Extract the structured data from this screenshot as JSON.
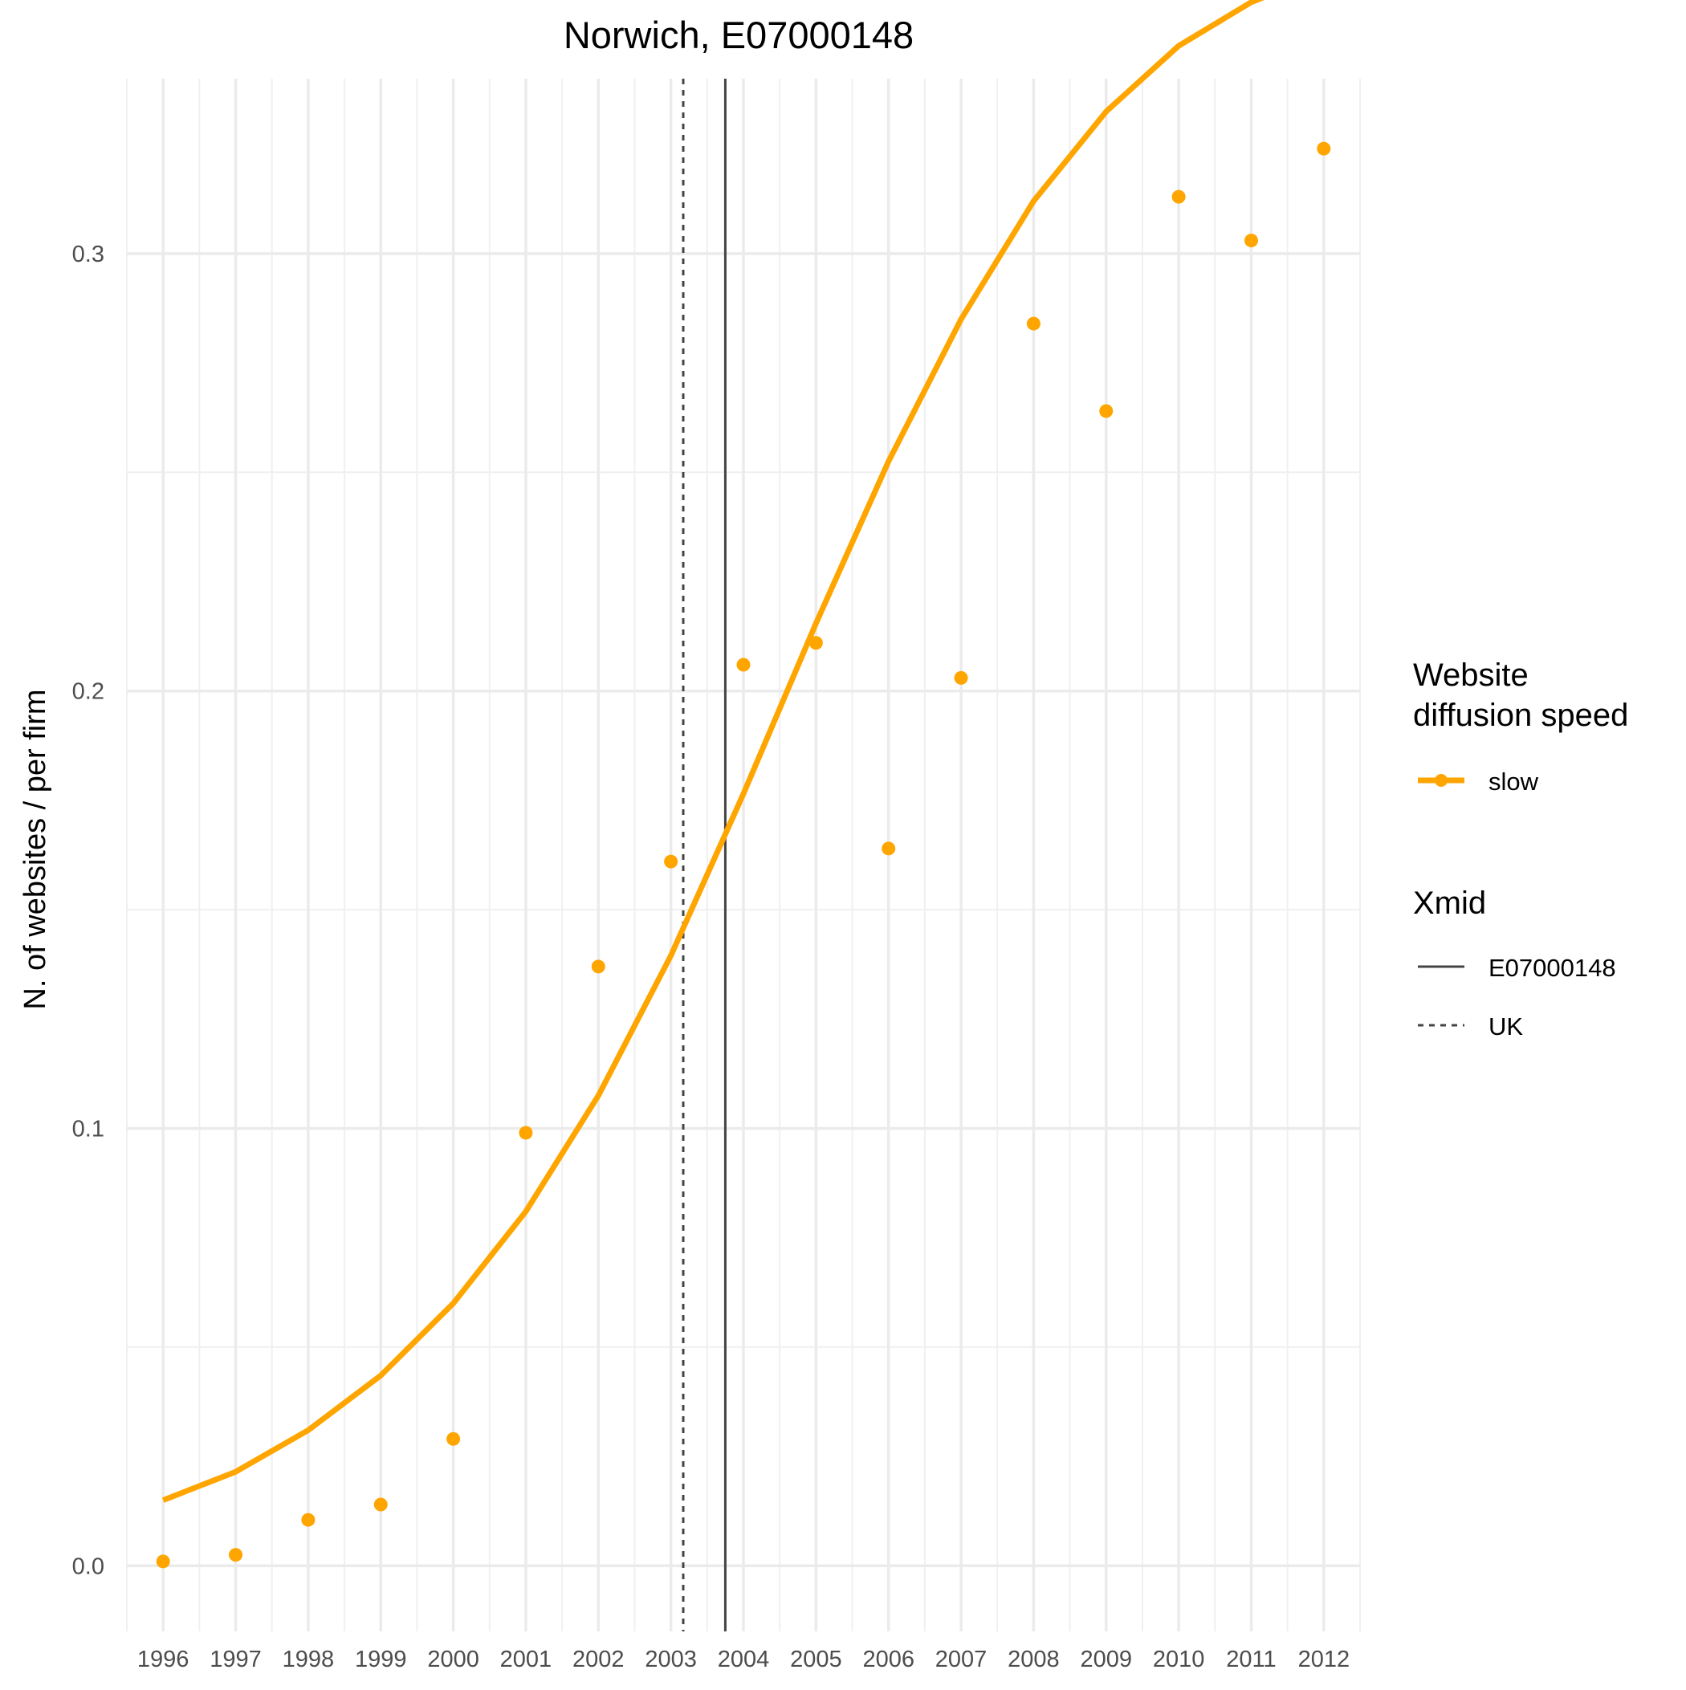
{
  "chart_data": {
    "type": "line",
    "title": "Norwich, E07000148",
    "xlabel": "",
    "ylabel": "N. of websites / per firm",
    "xlim": [
      1995.5,
      2012.5
    ],
    "ylim": [
      -0.015,
      0.34
    ],
    "x_ticks": [
      "1996",
      "1997",
      "1998",
      "1999",
      "2000",
      "2001",
      "2002",
      "2003",
      "2004",
      "2005",
      "2006",
      "2007",
      "2008",
      "2009",
      "2010",
      "2011",
      "2012"
    ],
    "y_ticks": [
      "0.0",
      "0.1",
      "0.2",
      "0.3"
    ],
    "grid": true,
    "legend_position": "right",
    "series": [
      {
        "name": "slow",
        "kind": "points",
        "color": "#FFA500",
        "x": [
          1996,
          1997,
          1998,
          1999,
          2000,
          2001,
          2002,
          2003,
          2004,
          2005,
          2006,
          2007,
          2008,
          2009,
          2010,
          2011,
          2012
        ],
        "y": [
          0.001,
          0.0025,
          0.0105,
          0.014,
          0.029,
          0.099,
          0.137,
          0.161,
          0.206,
          0.211,
          0.164,
          0.203,
          0.284,
          0.264,
          0.313,
          0.303,
          0.324
        ]
      },
      {
        "name": "slow",
        "kind": "fit",
        "color": "#FFA500",
        "x": [
          1996,
          1997,
          1998,
          1999,
          2000,
          2001,
          2002,
          2003,
          2004,
          2005,
          2006,
          2007,
          2008,
          2009,
          2010,
          2011,
          2012
        ],
        "y": [
          0.015,
          0.0215,
          0.031,
          0.0435,
          0.06,
          0.081,
          0.1075,
          0.1395,
          0.1765,
          0.2155,
          0.2525,
          0.285,
          0.312,
          0.3325,
          0.3475,
          0.3575,
          0.364
        ]
      }
    ],
    "vlines": [
      {
        "name": "E07000148",
        "x": 2003.75,
        "style": "solid",
        "color": "#444444"
      },
      {
        "name": "UK",
        "x": 2003.17,
        "style": "dashed",
        "color": "#444444"
      }
    ],
    "legend": {
      "speed_title_line1": "Website",
      "speed_title_line2": "diffusion speed",
      "speed_item": "slow",
      "xmid_title": "Xmid",
      "xmid_item1": "E07000148",
      "xmid_item2": "UK"
    }
  }
}
